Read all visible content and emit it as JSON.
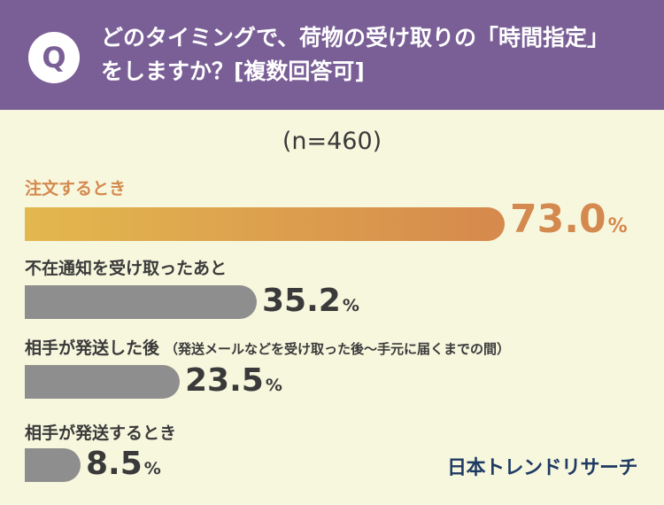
{
  "header": {
    "badge": "Q",
    "question_line1": "どのタイミングで、荷物の受け取りの「時間指定」",
    "question_line2": "をしますか？[複数回答可]"
  },
  "sample_size": "(n=460)",
  "chart_data": {
    "type": "bar",
    "orientation": "horizontal",
    "categories": [
      "注文するとき",
      "不在通知を受け取ったあと",
      "相手が発送した後",
      "相手が発送するとき"
    ],
    "category_notes": [
      "",
      "",
      "（発送メールなどを受け取った後〜手元に届くまでの間）",
      ""
    ],
    "values": [
      73.0,
      35.2,
      23.5,
      8.5
    ],
    "value_labels": [
      "73.0",
      "35.2",
      "23.5",
      "8.5"
    ],
    "unit": "%",
    "xlim": [
      0,
      100
    ],
    "highlight_index": 0,
    "colors": {
      "highlight_start": "#e3b84e",
      "highlight_end": "#d6894d",
      "default": "#8f8e8e"
    }
  },
  "brand": "日本トレンドリサーチ"
}
